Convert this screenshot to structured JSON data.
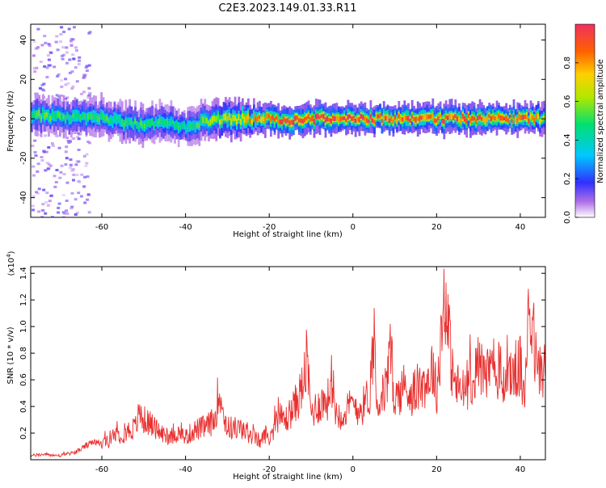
{
  "title": "C2E3.2023.149.01.33.R11",
  "colors": {
    "snr_line": "#e8302f",
    "spectrogram_spectrum": [
      "#ffffff",
      "#e8d8f8",
      "#b070e8",
      "#6a10d8",
      "#3030ff",
      "#00c8ff",
      "#00e070",
      "#b0e800",
      "#ffd000",
      "#ff6000",
      "#f03060"
    ]
  },
  "chart_data": [
    {
      "type": "heatmap",
      "xlabel": "Height of straight line (km)",
      "ylabel": "Frequency (Hz)",
      "xlim": [
        -77,
        46
      ],
      "ylim": [
        -50,
        48
      ],
      "xticks": [
        "-60",
        "-40",
        "-20",
        "0",
        "20",
        "40"
      ],
      "yticks": [
        "40",
        "20",
        "0",
        "-20",
        "-40"
      ],
      "xtick_values": [
        -60,
        -40,
        -20,
        0,
        20,
        40
      ],
      "ytick_values": [
        40,
        20,
        0,
        -20,
        -40
      ],
      "grid": false,
      "colorbar": {
        "label": "Normalized spectral amplitude",
        "range": [
          0,
          1
        ],
        "ticks": [
          "0.0",
          "0.2",
          "0.4",
          "0.6",
          "0.8"
        ],
        "tick_values": [
          0.0,
          0.2,
          0.4,
          0.6,
          0.8
        ],
        "colormap": "rainbow-like (violet→blue→cyan→green→yellow→red→pink)"
      },
      "ridge": {
        "description": "Narrow band of high amplitude centred near 0 Hz across full height range",
        "center_hz": [
          [
            -77,
            2
          ],
          [
            -70,
            1
          ],
          [
            -65,
            0
          ],
          [
            -60,
            1
          ],
          [
            -55,
            -2
          ],
          [
            -50,
            -3
          ],
          [
            -45,
            -2
          ],
          [
            -40,
            -4
          ],
          [
            -35,
            -1
          ],
          [
            -30,
            0
          ],
          [
            -25,
            0
          ],
          [
            -20,
            0
          ],
          [
            -15,
            -1
          ],
          [
            -10,
            0
          ],
          [
            0,
            0
          ],
          [
            10,
            0
          ],
          [
            20,
            0
          ],
          [
            30,
            0
          ],
          [
            40,
            0
          ],
          [
            46,
            0
          ]
        ],
        "peak_amplitude_by_height": [
          [
            -77,
            0.55
          ],
          [
            -65,
            0.5
          ],
          [
            -50,
            0.5
          ],
          [
            -40,
            0.45
          ],
          [
            -30,
            0.7
          ],
          [
            -20,
            0.85
          ],
          [
            -15,
            0.95
          ],
          [
            -10,
            0.95
          ],
          [
            0,
            0.92
          ],
          [
            10,
            0.9
          ],
          [
            20,
            0.88
          ],
          [
            30,
            0.9
          ],
          [
            40,
            0.92
          ],
          [
            46,
            0.7
          ]
        ]
      },
      "noise_region": {
        "description": "Scattered low-amplitude speckle spread across all frequencies",
        "x_range": [
          -77,
          -63
        ],
        "amplitude": 0.2
      }
    },
    {
      "type": "line",
      "xlabel": "Height of straight line (km)",
      "ylabel": "SNR (10 * v/v)",
      "multiplier_label_base": "(x10",
      "multiplier_label_exp": "4",
      "multiplier_label_close": ")",
      "xlim": [
        -77,
        46
      ],
      "ylim": [
        0,
        1.45
      ],
      "xticks": [
        "-60",
        "-40",
        "-20",
        "0",
        "20",
        "40"
      ],
      "yticks": [
        "0.2",
        "0.4",
        "0.6",
        "0.8",
        "1.0",
        "1.2",
        "1.4"
      ],
      "xtick_values": [
        -60,
        -40,
        -20,
        0,
        20,
        40
      ],
      "ytick_values": [
        0.2,
        0.4,
        0.6,
        0.8,
        1.0,
        1.2,
        1.4
      ],
      "grid": false,
      "series": [
        {
          "x": [
            -77,
            -74,
            -70,
            -66,
            -64,
            -62,
            -60,
            -58,
            -55,
            -52,
            -51,
            -50,
            -48,
            -46,
            -44,
            -42,
            -40,
            -38,
            -35,
            -33,
            -32,
            -31,
            -30,
            -28,
            -26,
            -24,
            -22,
            -21,
            -20,
            -18,
            -16,
            -14,
            -12,
            -11,
            -10,
            -8,
            -6,
            -5,
            -4,
            -2,
            0,
            2,
            4,
            5,
            6,
            8,
            9,
            10,
            12,
            14,
            16,
            18,
            19,
            20,
            21,
            22,
            23,
            24,
            26,
            28,
            30,
            32,
            34,
            36,
            38,
            40,
            41,
            42,
            44,
            46
          ],
          "y": [
            0.03,
            0.04,
            0.03,
            0.06,
            0.1,
            0.13,
            0.12,
            0.16,
            0.2,
            0.24,
            0.35,
            0.3,
            0.26,
            0.2,
            0.18,
            0.2,
            0.17,
            0.22,
            0.25,
            0.3,
            0.55,
            0.35,
            0.24,
            0.24,
            0.22,
            0.18,
            0.13,
            0.2,
            0.15,
            0.32,
            0.3,
            0.4,
            0.55,
            0.75,
            0.35,
            0.42,
            0.45,
            0.6,
            0.35,
            0.35,
            0.42,
            0.38,
            0.5,
            0.95,
            0.4,
            0.55,
            0.8,
            0.45,
            0.55,
            0.5,
            0.55,
            0.6,
            0.7,
            0.5,
            0.9,
            1.3,
            0.9,
            0.6,
            0.5,
            0.6,
            0.7,
            0.65,
            0.7,
            0.6,
            0.65,
            0.7,
            0.4,
            1.3,
            0.65,
            0.7
          ]
        }
      ]
    }
  ]
}
